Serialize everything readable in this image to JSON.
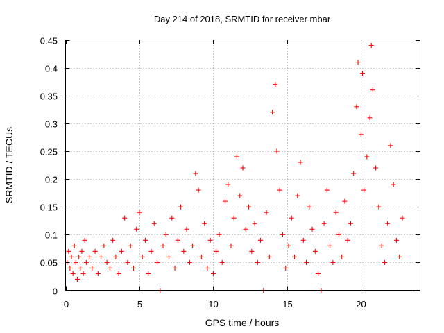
{
  "chart_data": {
    "type": "scatter",
    "title": "Day 214 of 2018, SRMTID for receiver mbar",
    "xlabel": "GPS time / hours",
    "ylabel": "SRMTID / TECUs",
    "xlim": [
      0,
      24
    ],
    "ylim": [
      0,
      0.45
    ],
    "xticks": [
      0,
      5,
      10,
      15,
      20
    ],
    "xtick_labels": [
      "0",
      "5",
      "10",
      "15",
      "20"
    ],
    "yticks": [
      0,
      0.05,
      0.1,
      0.15,
      0.2,
      0.25,
      0.3,
      0.35,
      0.4,
      0.45
    ],
    "ytick_labels": [
      "0",
      "0.05",
      "0.1",
      "0.15",
      "0.2",
      "0.25",
      "0.3",
      "0.35",
      "0.4",
      "0.45"
    ],
    "grid": true,
    "marker": "plus",
    "series": [
      {
        "name": "mbar",
        "color": "#ff0000",
        "points": [
          [
            0.1,
            0.05
          ],
          [
            0.2,
            0.07
          ],
          [
            0.3,
            0.04
          ],
          [
            0.4,
            0.06
          ],
          [
            0.5,
            0.03
          ],
          [
            0.6,
            0.08
          ],
          [
            0.7,
            0.05
          ],
          [
            0.8,
            0.02
          ],
          [
            0.9,
            0.06
          ],
          [
            1.0,
            0.04
          ],
          [
            1.1,
            0.07
          ],
          [
            1.2,
            0.03
          ],
          [
            1.3,
            0.09
          ],
          [
            1.4,
            0.05
          ],
          [
            1.6,
            0.06
          ],
          [
            1.8,
            0.04
          ],
          [
            2.0,
            0.07
          ],
          [
            2.2,
            0.03
          ],
          [
            2.4,
            0.06
          ],
          [
            2.6,
            0.08
          ],
          [
            2.8,
            0.05
          ],
          [
            3.0,
            0.04
          ],
          [
            3.2,
            0.09
          ],
          [
            3.4,
            0.06
          ],
          [
            3.6,
            0.03
          ],
          [
            3.8,
            0.07
          ],
          [
            4.0,
            0.13
          ],
          [
            4.2,
            0.05
          ],
          [
            4.4,
            0.08
          ],
          [
            4.6,
            0.04
          ],
          [
            4.8,
            0.11
          ],
          [
            5.0,
            0.14
          ],
          [
            5.2,
            0.06
          ],
          [
            5.4,
            0.09
          ],
          [
            5.6,
            0.03
          ],
          [
            5.8,
            0.07
          ],
          [
            6.0,
            0.12
          ],
          [
            6.2,
            0.05
          ],
          [
            6.4,
            0.0
          ],
          [
            6.6,
            0.08
          ],
          [
            6.8,
            0.1
          ],
          [
            7.0,
            0.06
          ],
          [
            7.2,
            0.13
          ],
          [
            7.4,
            0.04
          ],
          [
            7.6,
            0.09
          ],
          [
            7.8,
            0.15
          ],
          [
            8.0,
            0.07
          ],
          [
            8.2,
            0.11
          ],
          [
            8.4,
            0.05
          ],
          [
            8.6,
            0.08
          ],
          [
            8.8,
            0.21
          ],
          [
            9.0,
            0.18
          ],
          [
            9.2,
            0.06
          ],
          [
            9.4,
            0.12
          ],
          [
            9.6,
            0.04
          ],
          [
            9.8,
            0.09
          ],
          [
            10.0,
            0.03
          ],
          [
            10.2,
            0.07
          ],
          [
            10.4,
            0.1
          ],
          [
            10.6,
            0.05
          ],
          [
            10.8,
            0.16
          ],
          [
            11.0,
            0.19
          ],
          [
            11.2,
            0.08
          ],
          [
            11.4,
            0.13
          ],
          [
            11.6,
            0.24
          ],
          [
            11.8,
            0.17
          ],
          [
            12.0,
            0.22
          ],
          [
            12.2,
            0.11
          ],
          [
            12.4,
            0.15
          ],
          [
            12.6,
            0.07
          ],
          [
            12.8,
            0.12
          ],
          [
            13.0,
            0.05
          ],
          [
            13.2,
            0.09
          ],
          [
            13.4,
            0.0
          ],
          [
            13.6,
            0.14
          ],
          [
            13.8,
            0.06
          ],
          [
            14.0,
            0.32
          ],
          [
            14.2,
            0.37
          ],
          [
            14.3,
            0.25
          ],
          [
            14.5,
            0.18
          ],
          [
            14.7,
            0.1
          ],
          [
            14.9,
            0.04
          ],
          [
            15.1,
            0.08
          ],
          [
            15.3,
            0.13
          ],
          [
            15.5,
            0.06
          ],
          [
            15.7,
            0.17
          ],
          [
            15.9,
            0.23
          ],
          [
            16.1,
            0.09
          ],
          [
            16.3,
            0.05
          ],
          [
            16.5,
            0.15
          ],
          [
            16.7,
            0.11
          ],
          [
            16.9,
            0.07
          ],
          [
            17.1,
            0.03
          ],
          [
            17.3,
            0.0
          ],
          [
            17.5,
            0.12
          ],
          [
            17.7,
            0.18
          ],
          [
            17.9,
            0.08
          ],
          [
            18.1,
            0.05
          ],
          [
            18.3,
            0.14
          ],
          [
            18.5,
            0.1
          ],
          [
            18.7,
            0.06
          ],
          [
            18.9,
            0.16
          ],
          [
            19.1,
            0.09
          ],
          [
            19.3,
            0.12
          ],
          [
            19.5,
            0.21
          ],
          [
            19.7,
            0.33
          ],
          [
            19.8,
            0.41
          ],
          [
            20.0,
            0.28
          ],
          [
            20.1,
            0.39
          ],
          [
            20.2,
            0.18
          ],
          [
            20.4,
            0.24
          ],
          [
            20.6,
            0.31
          ],
          [
            20.7,
            0.44
          ],
          [
            20.8,
            0.36
          ],
          [
            21.0,
            0.22
          ],
          [
            21.2,
            0.15
          ],
          [
            21.4,
            0.08
          ],
          [
            21.6,
            0.05
          ],
          [
            21.8,
            0.12
          ],
          [
            22.0,
            0.26
          ],
          [
            22.2,
            0.19
          ],
          [
            22.4,
            0.09
          ],
          [
            22.6,
            0.06
          ],
          [
            22.8,
            0.13
          ]
        ]
      }
    ]
  }
}
